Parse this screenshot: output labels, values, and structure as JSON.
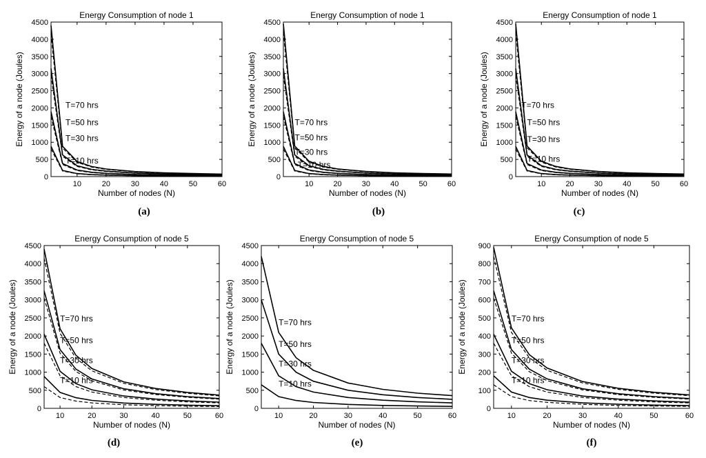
{
  "chart_data": [
    {
      "id": "a",
      "panel_label": "(a)",
      "type": "line",
      "title": "Energy Consumption of node 1",
      "xlabel": "Number of nodes (N)",
      "ylabel": "Energy of a node (Joules)",
      "xlim": [
        1,
        60
      ],
      "ylim": [
        0,
        4500
      ],
      "xticks": [
        "10",
        "20",
        "30",
        "40",
        "50",
        "60"
      ],
      "yticks": [
        "0",
        "500",
        "1000",
        "1500",
        "2000",
        "2500",
        "3000",
        "3500",
        "4000",
        "4500"
      ],
      "x": [
        1,
        5,
        10,
        15,
        20,
        30,
        40,
        50,
        60
      ],
      "series": [
        {
          "name": "T=70 hrs",
          "style": "solid",
          "values": [
            4400,
            880,
            440,
            293,
            220,
            147,
            110,
            88,
            73
          ]
        },
        {
          "name": "",
          "style": "dashed",
          "values": [
            4150,
            830,
            415,
            277,
            208,
            138,
            104,
            83,
            69
          ]
        },
        {
          "name": "T=50 hrs",
          "style": "solid",
          "values": [
            3150,
            630,
            315,
            210,
            158,
            105,
            79,
            63,
            53
          ]
        },
        {
          "name": "",
          "style": "dashed",
          "values": [
            2950,
            590,
            295,
            197,
            148,
            98,
            74,
            59,
            49
          ]
        },
        {
          "name": "T=30 hrs",
          "style": "solid",
          "values": [
            1890,
            380,
            190,
            126,
            95,
            63,
            47,
            38,
            32
          ]
        },
        {
          "name": "",
          "style": "dashed",
          "values": [
            1750,
            350,
            175,
            117,
            88,
            58,
            44,
            35,
            29
          ]
        },
        {
          "name": "T=10 hrs",
          "style": "solid",
          "values": [
            880,
            176,
            88,
            59,
            44,
            29,
            22,
            18,
            15
          ]
        },
        {
          "name": "",
          "style": "dashed",
          "values": [
            800,
            160,
            80,
            53,
            40,
            27,
            20,
            16,
            13
          ]
        }
      ],
      "annotations": [
        {
          "text": "T=70 hrs",
          "x": 6,
          "y": 2000
        },
        {
          "text": "T=50 hrs",
          "x": 6,
          "y": 1500
        },
        {
          "text": "T=30 hrs",
          "x": 6,
          "y": 1030
        },
        {
          "text": "T=10 hrs",
          "x": 6,
          "y": 380
        }
      ]
    },
    {
      "id": "b",
      "panel_label": "(b)",
      "type": "line",
      "title": "Energy Consumption of node 1",
      "xlabel": "Number of nodes (N)",
      "ylabel": "Energy of a node (Joules)",
      "xlim": [
        1,
        60
      ],
      "ylim": [
        0,
        4500
      ],
      "xticks": [
        "10",
        "20",
        "30",
        "40",
        "50",
        "60"
      ],
      "yticks": [
        "0",
        "500",
        "1000",
        "1500",
        "2000",
        "2500",
        "3000",
        "3500",
        "4000",
        "4500"
      ],
      "x": [
        1,
        5,
        10,
        15,
        20,
        30,
        40,
        50,
        60
      ],
      "series": [
        {
          "name": "T=70 hrs",
          "style": "solid",
          "values": [
            4450,
            890,
            445,
            297,
            223,
            148,
            111,
            89,
            74
          ]
        },
        {
          "name": "",
          "style": "dashed",
          "values": [
            4200,
            840,
            420,
            280,
            210,
            140,
            105,
            84,
            70
          ]
        },
        {
          "name": "T=50 hrs",
          "style": "solid",
          "values": [
            3150,
            630,
            315,
            210,
            158,
            105,
            79,
            63,
            53
          ]
        },
        {
          "name": "",
          "style": "dashed",
          "values": [
            2950,
            590,
            295,
            197,
            148,
            98,
            74,
            59,
            49
          ]
        },
        {
          "name": "T=30 hrs",
          "style": "solid",
          "values": [
            1890,
            380,
            190,
            126,
            95,
            63,
            47,
            38,
            32
          ]
        },
        {
          "name": "",
          "style": "dashed",
          "values": [
            1750,
            350,
            175,
            117,
            88,
            58,
            44,
            35,
            29
          ]
        },
        {
          "name": "T=10 hrs",
          "style": "solid",
          "values": [
            880,
            176,
            88,
            59,
            44,
            29,
            22,
            18,
            15
          ]
        },
        {
          "name": "",
          "style": "dashed",
          "values": [
            800,
            160,
            80,
            53,
            40,
            27,
            20,
            16,
            13
          ]
        }
      ],
      "annotations": [
        {
          "text": "T=70 hrs",
          "x": 5,
          "y": 1500
        },
        {
          "text": "T=50 hrs",
          "x": 5,
          "y": 1050
        },
        {
          "text": "T=30 hrs",
          "x": 5,
          "y": 630
        },
        {
          "text": "T=10 hrs",
          "x": 6,
          "y": 260
        }
      ]
    },
    {
      "id": "c",
      "panel_label": "(c)",
      "type": "line",
      "title": "Energy Consumption of node 1",
      "xlabel": "Number of nodes (N)",
      "ylabel": "Energy of a node (Joules)",
      "xlim": [
        1,
        60
      ],
      "ylim": [
        0,
        4500
      ],
      "xticks": [
        "10",
        "20",
        "30",
        "40",
        "50",
        "60"
      ],
      "yticks": [
        "0",
        "500",
        "1000",
        "1500",
        "2000",
        "2500",
        "3000",
        "3500",
        "4000",
        "4500"
      ],
      "x": [
        1,
        5,
        10,
        15,
        20,
        30,
        40,
        50,
        60
      ],
      "series": [
        {
          "name": "T=70 hrs",
          "style": "solid",
          "values": [
            4450,
            890,
            445,
            297,
            223,
            148,
            111,
            89,
            74
          ]
        },
        {
          "name": "",
          "style": "dashed",
          "values": [
            4200,
            840,
            420,
            280,
            210,
            140,
            105,
            84,
            70
          ]
        },
        {
          "name": "T=50 hrs",
          "style": "solid",
          "values": [
            3150,
            630,
            315,
            210,
            158,
            105,
            79,
            63,
            53
          ]
        },
        {
          "name": "",
          "style": "dashed",
          "values": [
            2950,
            590,
            295,
            197,
            148,
            98,
            74,
            59,
            49
          ]
        },
        {
          "name": "T=30 hrs",
          "style": "solid",
          "values": [
            1890,
            380,
            190,
            126,
            95,
            63,
            47,
            38,
            32
          ]
        },
        {
          "name": "",
          "style": "dashed",
          "values": [
            1750,
            350,
            175,
            117,
            88,
            58,
            44,
            35,
            29
          ]
        },
        {
          "name": "T=10 hrs",
          "style": "solid",
          "values": [
            880,
            176,
            88,
            59,
            44,
            29,
            22,
            18,
            15
          ]
        },
        {
          "name": "",
          "style": "dashed",
          "values": [
            800,
            160,
            80,
            53,
            40,
            27,
            20,
            16,
            13
          ]
        }
      ],
      "annotations": [
        {
          "text": "T=70 hrs",
          "x": 3,
          "y": 2000
        },
        {
          "text": "T=50 hrs",
          "x": 5,
          "y": 1500
        },
        {
          "text": "T=30 hrs",
          "x": 5,
          "y": 1000
        },
        {
          "text": "T=10 hrs",
          "x": 5,
          "y": 430
        }
      ]
    },
    {
      "id": "d",
      "panel_label": "(d)",
      "type": "line",
      "title": "Energy Consumption of node 5",
      "xlabel": "Number of nodes (N)",
      "ylabel": "Energy of a node (Joules)",
      "xlim": [
        5,
        60
      ],
      "ylim": [
        0,
        4500
      ],
      "xticks": [
        "10",
        "20",
        "30",
        "40",
        "50",
        "60"
      ],
      "yticks": [
        "0",
        "500",
        "1000",
        "1500",
        "2000",
        "2500",
        "3000",
        "3500",
        "4000",
        "4500"
      ],
      "x": [
        5,
        10,
        15,
        20,
        30,
        40,
        50,
        60
      ],
      "series": [
        {
          "name": "T=70 hrs",
          "style": "solid",
          "values": [
            4400,
            2200,
            1467,
            1100,
            733,
            550,
            440,
            367
          ]
        },
        {
          "name": "",
          "style": "dashed",
          "values": [
            4150,
            2075,
            1383,
            1038,
            692,
            519,
            415,
            346
          ]
        },
        {
          "name": "T=50 hrs",
          "style": "solid",
          "values": [
            3250,
            1625,
            1083,
            813,
            542,
            406,
            325,
            271
          ]
        },
        {
          "name": "",
          "style": "dashed",
          "values": [
            3050,
            1525,
            1017,
            763,
            508,
            381,
            305,
            254
          ]
        },
        {
          "name": "T=30 hrs",
          "style": "solid",
          "values": [
            2050,
            1025,
            683,
            513,
            342,
            256,
            205,
            171
          ]
        },
        {
          "name": "",
          "style": "dashed",
          "values": [
            1800,
            900,
            600,
            450,
            300,
            225,
            180,
            150
          ]
        },
        {
          "name": "T=10 hrs",
          "style": "solid",
          "values": [
            880,
            440,
            293,
            220,
            147,
            110,
            88,
            73
          ]
        },
        {
          "name": "",
          "style": "dashed",
          "values": [
            600,
            300,
            200,
            150,
            100,
            75,
            60,
            50
          ]
        }
      ],
      "annotations": [
        {
          "text": "T=70 hrs",
          "x": 10,
          "y": 2400
        },
        {
          "text": "T=50 hrs",
          "x": 10,
          "y": 1800
        },
        {
          "text": "T=30 hrs",
          "x": 10,
          "y": 1250
        },
        {
          "text": "T=10 hrs",
          "x": 10,
          "y": 700
        }
      ]
    },
    {
      "id": "e",
      "panel_label": "(e)",
      "type": "line",
      "title": "Energy Consumption of node 5",
      "xlabel": "Number of nodes (N)",
      "ylabel": "Energy of a node (Joules)",
      "xlim": [
        5,
        60
      ],
      "ylim": [
        0,
        4500
      ],
      "xticks": [
        "10",
        "20",
        "30",
        "40",
        "50",
        "60"
      ],
      "yticks": [
        "0",
        "500",
        "1000",
        "1500",
        "2000",
        "2500",
        "3000",
        "3500",
        "4000",
        "4500"
      ],
      "x": [
        5,
        10,
        15,
        20,
        30,
        40,
        50,
        60
      ],
      "series": [
        {
          "name": "T=70 hrs",
          "style": "solid",
          "values": [
            4200,
            2100,
            1400,
            1050,
            700,
            525,
            420,
            350
          ]
        },
        {
          "name": "T=50 hrs",
          "style": "solid",
          "values": [
            3000,
            1500,
            1000,
            750,
            500,
            375,
            300,
            250
          ]
        },
        {
          "name": "T=30 hrs",
          "style": "solid",
          "values": [
            1800,
            900,
            600,
            450,
            300,
            225,
            180,
            150
          ]
        },
        {
          "name": "T=10 hrs",
          "style": "solid",
          "values": [
            650,
            325,
            217,
            163,
            108,
            81,
            65,
            54
          ]
        }
      ],
      "annotations": [
        {
          "text": "T=70 hrs",
          "x": 10,
          "y": 2300
        },
        {
          "text": "T=50 hrs",
          "x": 10,
          "y": 1700
        },
        {
          "text": "T=30 hrs",
          "x": 10,
          "y": 1150
        },
        {
          "text": "T=10 hrs",
          "x": 10,
          "y": 600
        }
      ]
    },
    {
      "id": "f",
      "panel_label": "(f)",
      "type": "line",
      "title": "Energy Consumption of node 5",
      "xlabel": "Number of nodes (N)",
      "ylabel": "Energy of a node (Joules)",
      "xlim": [
        5,
        60
      ],
      "ylim": [
        0,
        900
      ],
      "xticks": [
        "10",
        "20",
        "30",
        "40",
        "50",
        "60"
      ],
      "yticks": [
        "0",
        "100",
        "200",
        "300",
        "400",
        "500",
        "600",
        "700",
        "800",
        "900"
      ],
      "x": [
        5,
        10,
        15,
        20,
        30,
        40,
        50,
        60
      ],
      "series": [
        {
          "name": "T=70 hrs",
          "style": "solid",
          "values": [
            890,
            445,
            297,
            223,
            148,
            111,
            89,
            74
          ]
        },
        {
          "name": "",
          "style": "dashed",
          "values": [
            840,
            420,
            280,
            210,
            140,
            105,
            84,
            70
          ]
        },
        {
          "name": "T=50 hrs",
          "style": "solid",
          "values": [
            650,
            325,
            217,
            163,
            108,
            81,
            65,
            54
          ]
        },
        {
          "name": "",
          "style": "dashed",
          "values": [
            610,
            305,
            203,
            153,
            102,
            76,
            61,
            51
          ]
        },
        {
          "name": "T=30 hrs",
          "style": "solid",
          "values": [
            410,
            205,
            137,
            103,
            68,
            51,
            41,
            34
          ]
        },
        {
          "name": "",
          "style": "dashed",
          "values": [
            360,
            180,
            120,
            90,
            60,
            45,
            36,
            30
          ]
        },
        {
          "name": "T=10 hrs",
          "style": "solid",
          "values": [
            180,
            90,
            60,
            45,
            30,
            23,
            18,
            15
          ]
        },
        {
          "name": "",
          "style": "dashed",
          "values": [
            130,
            65,
            43,
            33,
            22,
            16,
            13,
            11
          ]
        }
      ],
      "annotations": [
        {
          "text": "T=70 hrs",
          "x": 10,
          "y": 480
        },
        {
          "text": "T=50 hrs",
          "x": 10,
          "y": 360
        },
        {
          "text": "T=30 hrs",
          "x": 10,
          "y": 250
        },
        {
          "text": "T=10 hrs",
          "x": 10,
          "y": 140
        }
      ]
    }
  ]
}
